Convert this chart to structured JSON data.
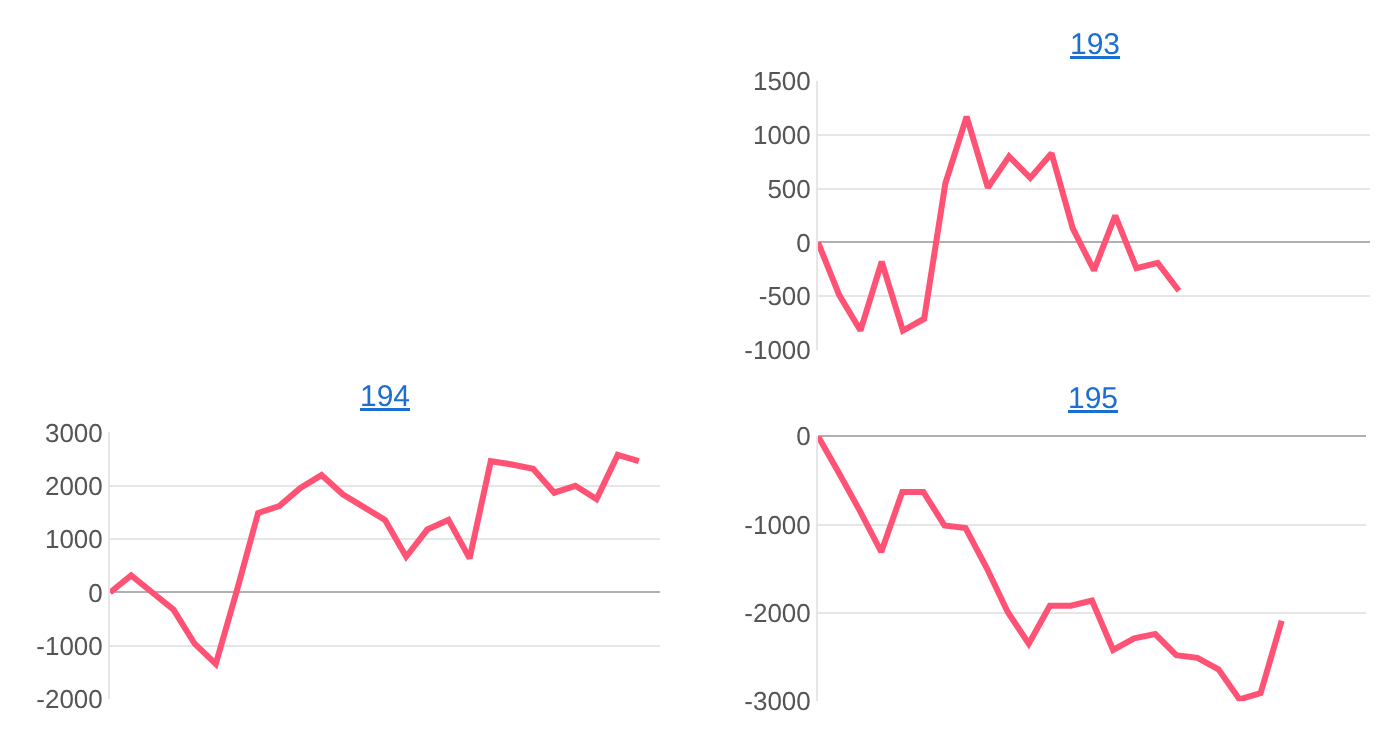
{
  "chart_data": [
    {
      "type": "line",
      "title": "193",
      "categories": [
        null,
        null,
        null,
        null,
        null,
        null,
        null,
        null,
        null,
        null,
        null,
        null,
        null,
        null,
        null,
        null,
        null,
        null,
        null,
        null,
        null,
        null,
        null,
        null,
        null,
        null,
        null
      ],
      "series": [
        {
          "color": "#ff5274",
          "values": [
            0,
            -490,
            -820,
            -180,
            -820,
            -710,
            550,
            1170,
            510,
            800,
            600,
            830,
            130,
            -260,
            250,
            -240,
            -190,
            -450,
            null,
            null,
            null,
            null,
            null,
            null,
            null,
            null,
            null
          ]
        }
      ],
      "ylim": [
        -1000,
        1500
      ],
      "yticks": [
        -1000,
        -500,
        0,
        500,
        1000,
        1500
      ],
      "grid": "y",
      "tick_labels": "y",
      "marker": "none",
      "line_style": "solid"
    },
    {
      "type": "line",
      "title": "194",
      "categories": [
        null,
        null,
        null,
        null,
        null,
        null,
        null,
        null,
        null,
        null,
        null,
        null,
        null,
        null,
        null,
        null,
        null,
        null,
        null,
        null,
        null,
        null,
        null,
        null,
        null,
        null,
        null
      ],
      "series": [
        {
          "color": "#ff5274",
          "values": [
            0,
            320,
            0,
            -320,
            -960,
            -1340,
            40,
            1490,
            1620,
            1960,
            2200,
            1840,
            1600,
            1360,
            670,
            1180,
            1360,
            640,
            2460,
            2400,
            2320,
            1870,
            2000,
            1750,
            2580,
            2460,
            null
          ]
        }
      ],
      "ylim": [
        -2000,
        3000
      ],
      "yticks": [
        -2000,
        -1000,
        0,
        1000,
        2000,
        3000
      ],
      "grid": "y",
      "tick_labels": "y",
      "marker": "none",
      "line_style": "solid"
    },
    {
      "type": "line",
      "title": "195",
      "categories": [
        null,
        null,
        null,
        null,
        null,
        null,
        null,
        null,
        null,
        null,
        null,
        null,
        null,
        null,
        null,
        null,
        null,
        null,
        null,
        null,
        null,
        null,
        null,
        null,
        null,
        null,
        null
      ],
      "series": [
        {
          "color": "#ff5274",
          "values": [
            0,
            -420,
            -850,
            -1310,
            -630,
            -630,
            -1010,
            -1040,
            -1490,
            -1990,
            -2350,
            -1920,
            -1920,
            -1860,
            -2420,
            -2290,
            -2240,
            -2480,
            -2510,
            -2640,
            -2980,
            -2910,
            -2090,
            null,
            null,
            null,
            null
          ]
        }
      ],
      "ylim": [
        -3000,
        0
      ],
      "yticks": [
        -3000,
        -2000,
        -1000,
        0
      ],
      "grid": "y",
      "tick_labels": "y",
      "marker": "none",
      "line_style": "solid"
    }
  ]
}
